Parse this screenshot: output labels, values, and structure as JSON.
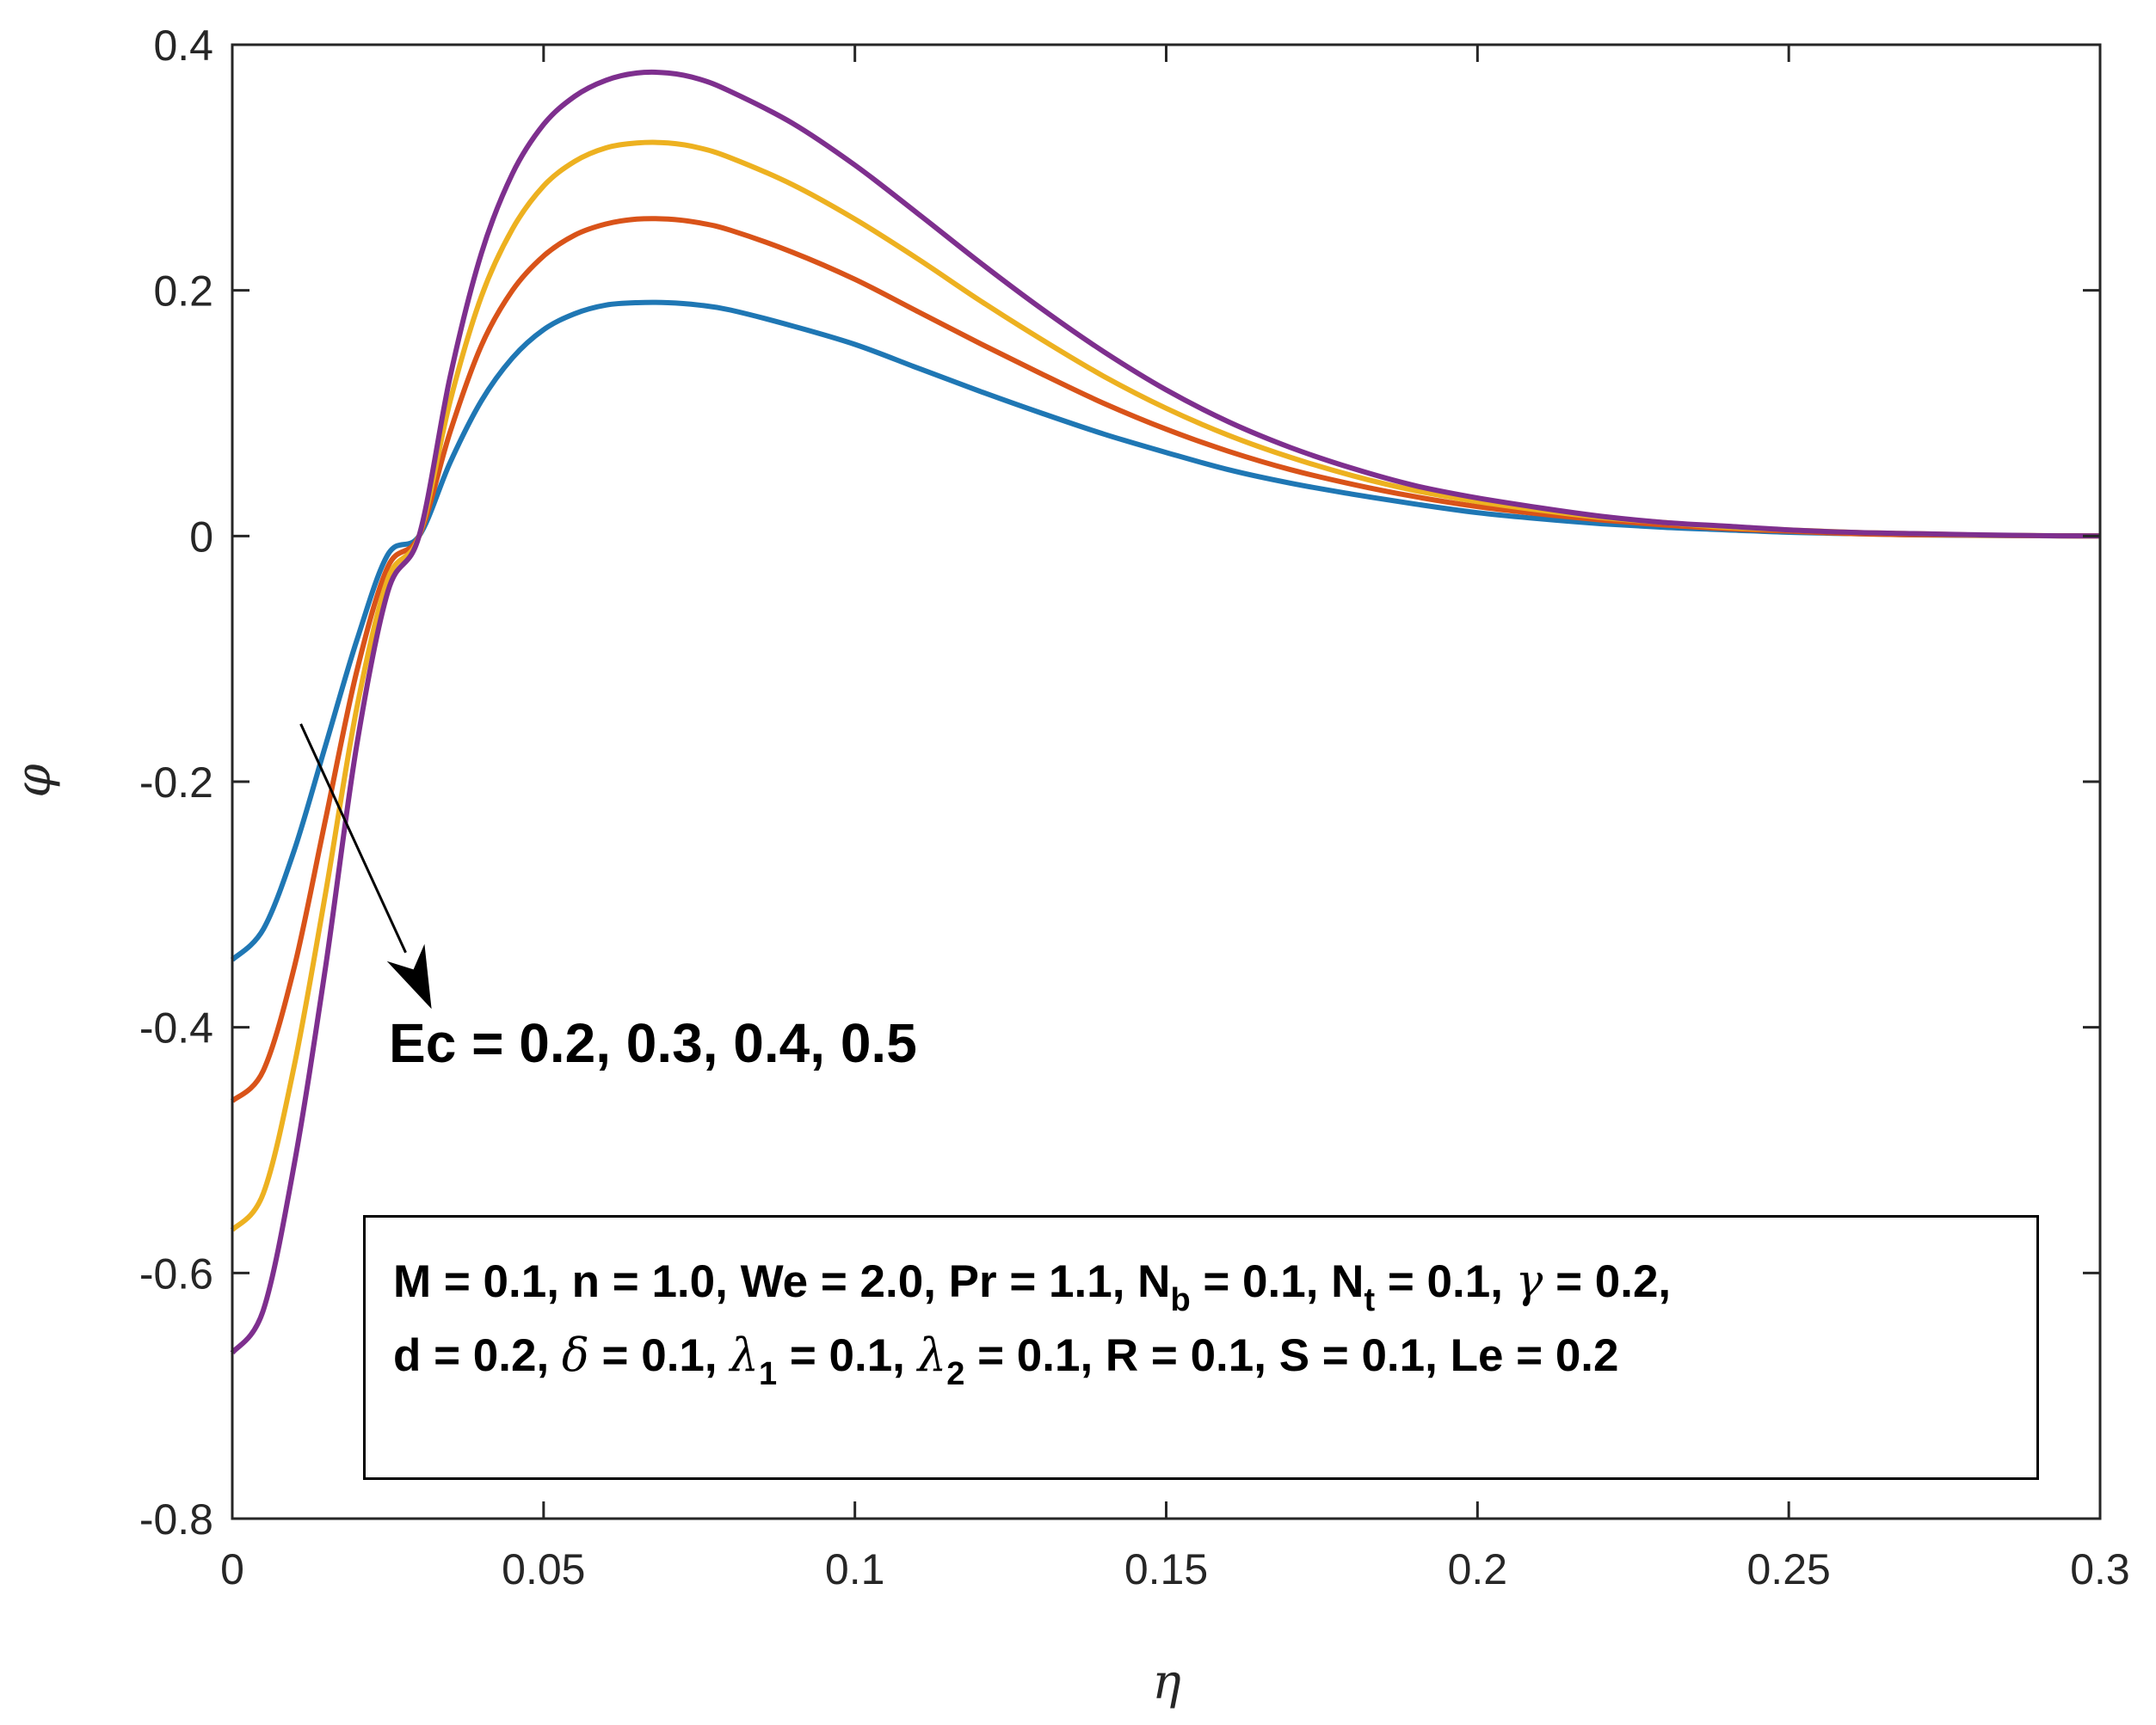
{
  "chart_data": {
    "type": "line",
    "xlabel": "η",
    "ylabel": "φ",
    "xlim": [
      0,
      0.3
    ],
    "ylim": [
      -0.8,
      0.4
    ],
    "xticks": [
      0,
      0.05,
      0.1,
      0.15,
      0.2,
      0.25,
      0.3
    ],
    "xtick_labels": [
      "0",
      "0.05",
      "0.1",
      "0.15",
      "0.2",
      "0.25",
      "0.3"
    ],
    "yticks": [
      -0.8,
      -0.6,
      -0.4,
      -0.2,
      0,
      0.2,
      0.4
    ],
    "ytick_labels": [
      "-0.8",
      "-0.6",
      "-0.4",
      "-0.2",
      "0",
      "0.2",
      "0.4"
    ],
    "grid": false,
    "x": [
      0,
      0.005,
      0.01,
      0.015,
      0.02,
      0.025,
      0.03,
      0.035,
      0.04,
      0.045,
      0.05,
      0.055,
      0.06,
      0.065,
      0.07,
      0.075,
      0.08,
      0.09,
      0.1,
      0.11,
      0.12,
      0.13,
      0.14,
      0.15,
      0.16,
      0.17,
      0.18,
      0.19,
      0.2,
      0.21,
      0.22,
      0.23,
      0.24,
      0.25,
      0.26,
      0.27,
      0.28,
      0.29,
      0.3
    ],
    "series": [
      {
        "name": "Ec = 0.2",
        "color": "#1f77b4",
        "values": [
          -0.345,
          -0.32,
          -0.255,
          -0.17,
          -0.085,
          -0.015,
          0.0,
          0.06,
          0.11,
          0.145,
          0.168,
          0.181,
          0.188,
          0.19,
          0.19,
          0.188,
          0.184,
          0.171,
          0.156,
          0.137,
          0.118,
          0.1,
          0.083,
          0.068,
          0.054,
          0.043,
          0.034,
          0.026,
          0.019,
          0.014,
          0.01,
          0.007,
          0.005,
          0.003,
          0.002,
          0.001,
          0.0005,
          0.0002,
          0.0
        ]
      },
      {
        "name": "Ec = 0.3",
        "color": "#d95319",
        "values": [
          -0.46,
          -0.435,
          -0.35,
          -0.23,
          -0.11,
          -0.025,
          0.0,
          0.085,
          0.155,
          0.2,
          0.228,
          0.245,
          0.254,
          0.258,
          0.258,
          0.255,
          0.249,
          0.231,
          0.209,
          0.183,
          0.157,
          0.132,
          0.108,
          0.087,
          0.069,
          0.054,
          0.042,
          0.032,
          0.024,
          0.018,
          0.013,
          0.009,
          0.006,
          0.004,
          0.002,
          0.001,
          0.0006,
          0.0002,
          0.0
        ]
      },
      {
        "name": "Ec = 0.4",
        "color": "#edb120",
        "values": [
          -0.565,
          -0.535,
          -0.43,
          -0.29,
          -0.14,
          -0.035,
          0.0,
          0.11,
          0.195,
          0.25,
          0.285,
          0.305,
          0.316,
          0.32,
          0.32,
          0.316,
          0.308,
          0.286,
          0.258,
          0.226,
          0.192,
          0.16,
          0.13,
          0.104,
          0.082,
          0.064,
          0.049,
          0.037,
          0.028,
          0.021,
          0.015,
          0.011,
          0.007,
          0.005,
          0.003,
          0.002,
          0.0008,
          0.0003,
          0.0
        ]
      },
      {
        "name": "Ec = 0.5",
        "color": "#7e2f8e",
        "values": [
          -0.665,
          -0.63,
          -0.51,
          -0.35,
          -0.17,
          -0.045,
          0.0,
          0.13,
          0.23,
          0.295,
          0.335,
          0.358,
          0.371,
          0.377,
          0.377,
          0.372,
          0.362,
          0.336,
          0.302,
          0.263,
          0.223,
          0.185,
          0.15,
          0.119,
          0.093,
          0.072,
          0.055,
          0.041,
          0.031,
          0.023,
          0.016,
          0.011,
          0.008,
          0.005,
          0.003,
          0.002,
          0.001,
          0.0003,
          0.0
        ]
      }
    ],
    "annotation": {
      "text": "Ec = 0.2, 0.3, 0.4, 0.5",
      "arrow_from": [
        0.011,
        -0.153
      ],
      "arrow_to": [
        0.032,
        -0.385
      ]
    },
    "parameter_box": {
      "line1": {
        "a": "M = 0.1, n = 1.0, We = 2.0, Pr = 1.1, N",
        "b_sub": "b",
        "c": " = 0.1, N",
        "t_sub": "t",
        "d": " = 0.1, ",
        "gamma": "γ",
        "e": " = 0.2,"
      },
      "line2": {
        "a": "d = 0.2, ",
        "delta": "δ",
        "b": " = 0.1, ",
        "lambda1": "λ",
        "sub1": "1",
        "c": " = 0.1, ",
        "lambda2": "λ",
        "sub2": "2",
        "d": " = 0.1, R = 0.1, S = 0.1, Le = 0.2"
      }
    }
  }
}
